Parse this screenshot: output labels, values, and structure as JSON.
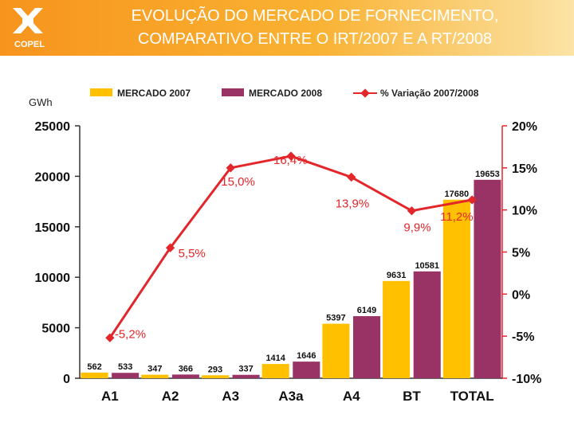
{
  "header": {
    "logo_text": "COPEL",
    "title_line1": "EVOLUÇÃO DO MERCADO DE FORNECIMENTO,",
    "title_line2": "COMPARATIVO ENTRE O IRT/2007 E A RT/2008"
  },
  "colors": {
    "mercado_2007": "#ffc000",
    "mercado_2008": "#993366",
    "variacao": "#e3262a",
    "header": "#f7941d"
  },
  "chart_data": {
    "type": "bar",
    "unit_label": "GWh",
    "categories": [
      "A1",
      "A2",
      "A3",
      "A3a",
      "A4",
      "BT",
      "TOTAL"
    ],
    "series": [
      {
        "name": "MERCADO 2007",
        "type": "bar",
        "axis": "left",
        "values": [
          562,
          347,
          293,
          1414,
          5397,
          9631,
          17680
        ],
        "labels": [
          "562",
          "347",
          "293",
          "1414",
          "5397",
          "9631",
          "17680"
        ]
      },
      {
        "name": "MERCADO 2008",
        "type": "bar",
        "axis": "left",
        "values": [
          533,
          366,
          337,
          1646,
          6149,
          10581,
          19653
        ],
        "labels": [
          "533",
          "366",
          "337",
          "1646",
          "6149",
          "10581",
          "19653"
        ]
      },
      {
        "name": "% Variação 2007/2008",
        "type": "line",
        "axis": "right",
        "values": [
          -5.2,
          5.5,
          15.0,
          16.4,
          13.9,
          9.9,
          11.2
        ],
        "labels": [
          "-5,2%",
          "5,5%",
          "15,0%",
          "16,4%",
          "13,9%",
          "9,9%",
          "11,2%"
        ]
      }
    ],
    "left_axis": {
      "ylim": [
        0,
        25000
      ],
      "ticks": [
        "0",
        "5000",
        "10000",
        "15000",
        "20000",
        "25000"
      ]
    },
    "right_axis": {
      "ylim": [
        -10,
        20
      ],
      "ticks": [
        "-10%",
        "-5%",
        "0%",
        "5%",
        "10%",
        "15%",
        "20%"
      ]
    },
    "legend": "top"
  }
}
